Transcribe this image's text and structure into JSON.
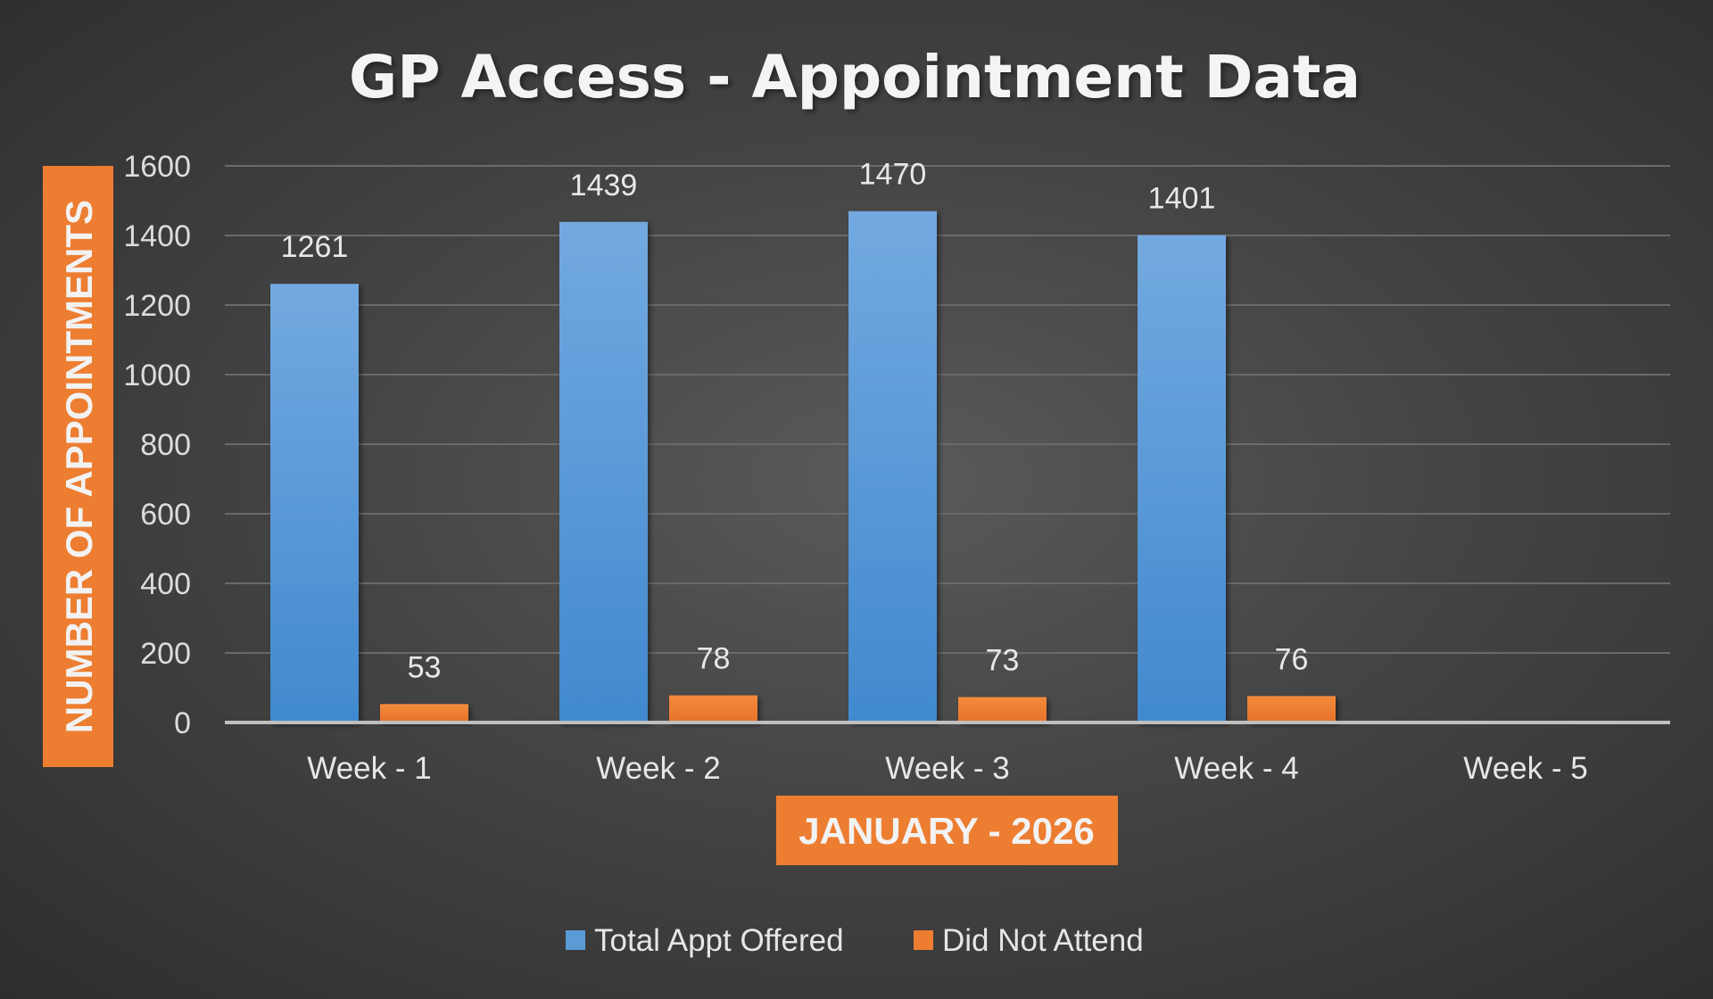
{
  "chart_data": {
    "type": "bar",
    "title": "GP Access - Appointment Data",
    "xlabel": "JANUARY - 2026",
    "ylabel": "NUMBER OF APPOINTMENTS",
    "categories": [
      "Week - 1",
      "Week - 2",
      "Week - 3",
      "Week - 4",
      "Week - 5"
    ],
    "series": [
      {
        "name": "Total Appt Offered",
        "values": [
          1261,
          1439,
          1470,
          1401,
          null
        ],
        "color": "#5b9bd5"
      },
      {
        "name": "Did Not Attend",
        "values": [
          53,
          78,
          73,
          76,
          null
        ],
        "color": "#ed7d31"
      }
    ],
    "ylim": [
      0,
      1600
    ],
    "yticks": [
      0,
      200,
      400,
      600,
      800,
      1000,
      1200,
      1400,
      1600
    ],
    "grid": true,
    "legend": "bottom",
    "data_labels": true,
    "axis_title_box_color": "#ed7d31"
  }
}
